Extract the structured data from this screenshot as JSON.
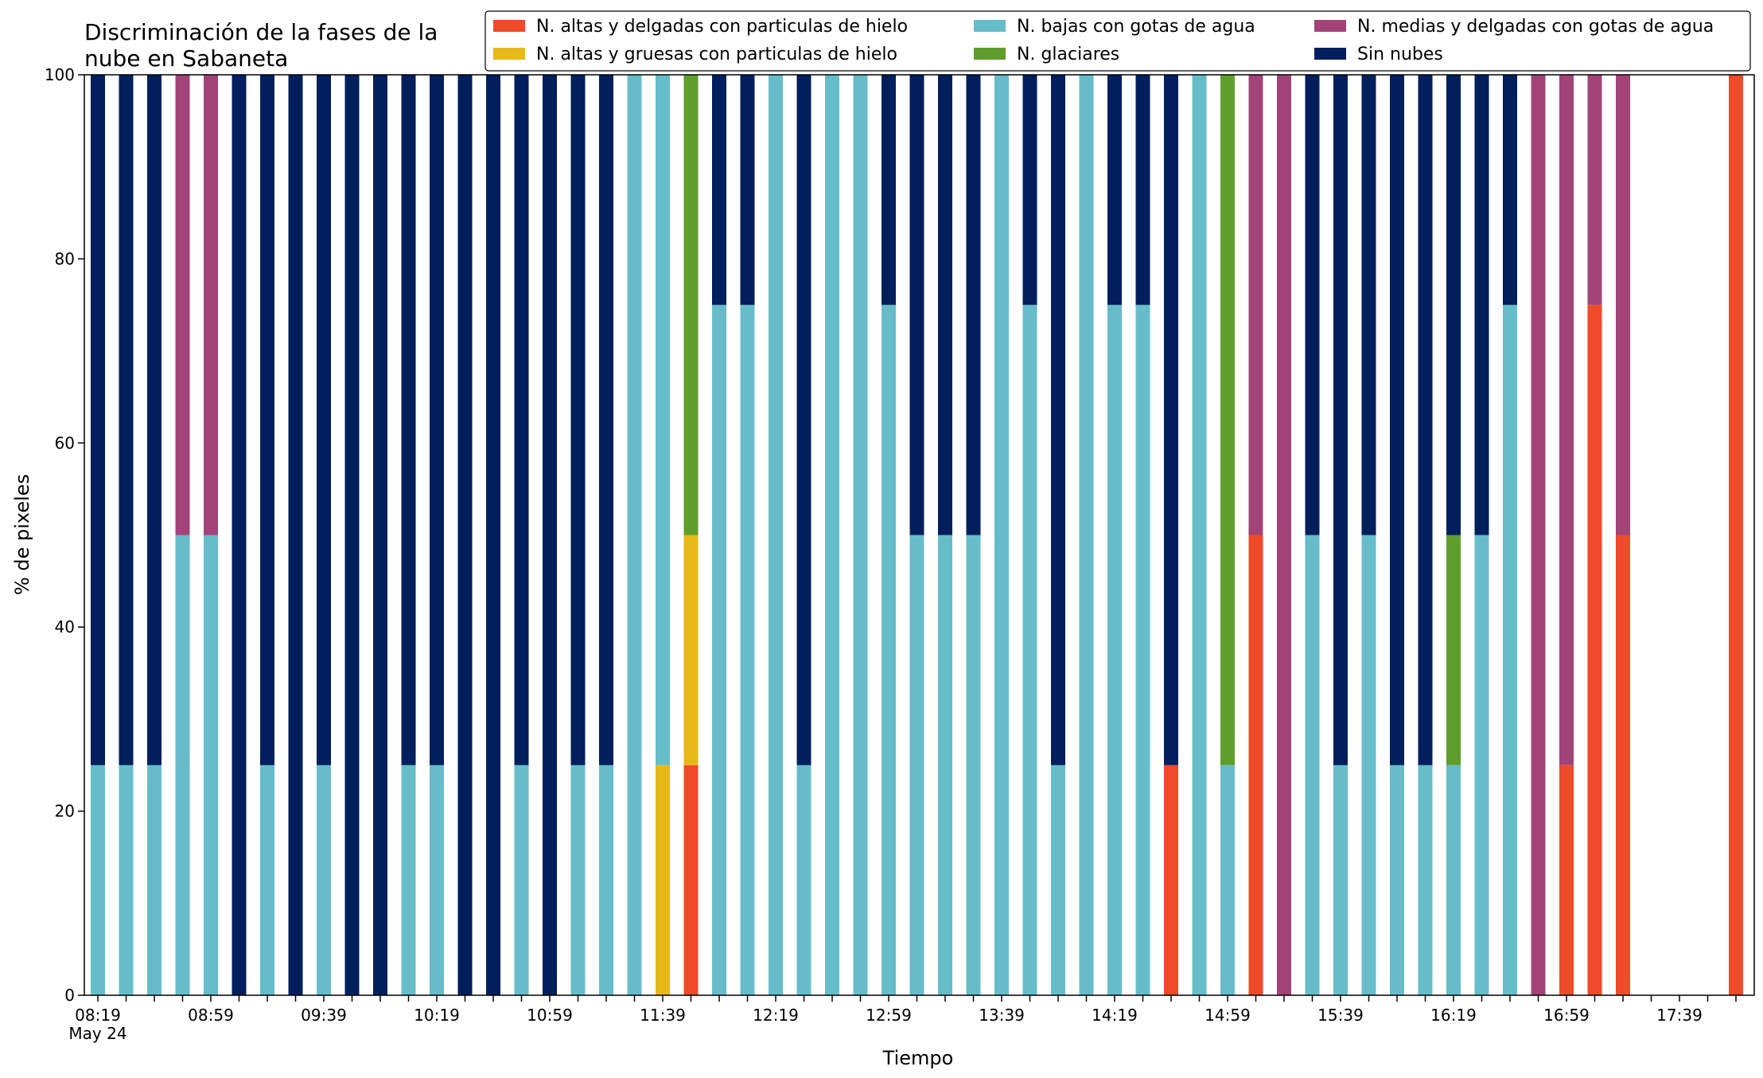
{
  "chart_data": {
    "type": "bar",
    "stacked": true,
    "title_line1": "Discriminación de la fases de la",
    "title_line2": "nube en Sabaneta",
    "xlabel": "Tiempo",
    "ylabel": "% de pixeles",
    "ylim": [
      0,
      100
    ],
    "yticks": [
      "0",
      "20",
      "40",
      "60",
      "80",
      "100"
    ],
    "x_date_label": "May 24",
    "xtick_labels": [
      "08:19",
      "08:59",
      "09:39",
      "10:19",
      "10:59",
      "11:39",
      "12:19",
      "12:59",
      "13:39",
      "14:19",
      "14:59",
      "15:39",
      "16:19",
      "16:59",
      "17:39"
    ],
    "categories": [
      "08:19",
      "08:29",
      "08:39",
      "08:49",
      "08:59",
      "09:09",
      "09:19",
      "09:29",
      "09:39",
      "09:49",
      "09:59",
      "10:09",
      "10:19",
      "10:29",
      "10:39",
      "10:49",
      "10:59",
      "11:09",
      "11:19",
      "11:29",
      "11:39",
      "11:49",
      "11:59",
      "12:09",
      "12:19",
      "12:29",
      "12:39",
      "12:49",
      "12:59",
      "13:09",
      "13:19",
      "13:29",
      "13:39",
      "13:49",
      "13:59",
      "14:09",
      "14:19",
      "14:29",
      "14:39",
      "14:49",
      "14:59",
      "15:09",
      "15:19",
      "15:29",
      "15:39",
      "15:49",
      "15:59",
      "16:09",
      "16:19",
      "16:29",
      "16:39",
      "16:49",
      "16:59",
      "17:09",
      "17:19",
      "17:29",
      "17:39",
      "17:49",
      "17:59"
    ],
    "legend_location": "top-right",
    "grid": false,
    "series": [
      {
        "name": "N. altas y delgadas con particulas de hielo",
        "color": "#ef4a2a",
        "values": [
          0,
          0,
          0,
          0,
          0,
          0,
          0,
          0,
          0,
          0,
          0,
          0,
          0,
          0,
          0,
          0,
          0,
          0,
          0,
          0,
          0,
          25,
          0,
          0,
          0,
          0,
          0,
          0,
          0,
          0,
          0,
          0,
          0,
          0,
          0,
          0,
          0,
          0,
          25,
          0,
          0,
          50,
          0,
          0,
          0,
          0,
          0,
          0,
          0,
          0,
          0,
          0,
          25,
          75,
          50,
          0,
          0,
          0,
          100
        ]
      },
      {
        "name": "N. altas y gruesas con particulas de hielo",
        "color": "#e6b81a",
        "values": [
          0,
          0,
          0,
          0,
          0,
          0,
          0,
          0,
          0,
          0,
          0,
          0,
          0,
          0,
          0,
          0,
          0,
          0,
          0,
          0,
          25,
          25,
          0,
          0,
          0,
          0,
          0,
          0,
          0,
          0,
          0,
          0,
          0,
          0,
          0,
          0,
          0,
          0,
          0,
          0,
          0,
          0,
          0,
          0,
          0,
          0,
          0,
          0,
          0,
          0,
          0,
          0,
          0,
          0,
          0,
          0,
          0,
          0,
          0
        ]
      },
      {
        "name": "N. bajas con gotas de agua",
        "color": "#66bdc9",
        "values": [
          25,
          25,
          25,
          50,
          50,
          0,
          25,
          0,
          25,
          0,
          0,
          25,
          25,
          0,
          0,
          25,
          0,
          25,
          25,
          100,
          75,
          0,
          75,
          75,
          100,
          25,
          100,
          100,
          75,
          50,
          50,
          50,
          100,
          75,
          25,
          100,
          75,
          75,
          0,
          100,
          25,
          0,
          0,
          50,
          25,
          50,
          25,
          25,
          25,
          50,
          75,
          0,
          0,
          0,
          0,
          0,
          0,
          0,
          0
        ]
      },
      {
        "name": "N. glaciares",
        "color": "#5f9e2c",
        "values": [
          0,
          0,
          0,
          0,
          0,
          0,
          0,
          0,
          0,
          0,
          0,
          0,
          0,
          0,
          0,
          0,
          0,
          0,
          0,
          0,
          0,
          50,
          0,
          0,
          0,
          0,
          0,
          0,
          0,
          0,
          0,
          0,
          0,
          0,
          0,
          0,
          0,
          0,
          0,
          0,
          75,
          0,
          0,
          0,
          0,
          0,
          0,
          0,
          25,
          0,
          0,
          0,
          0,
          0,
          0,
          0,
          0,
          0,
          0
        ]
      },
      {
        "name": "N. medias y delgadas con gotas de agua",
        "color": "#a24478",
        "values": [
          0,
          0,
          0,
          50,
          50,
          0,
          0,
          0,
          0,
          0,
          0,
          0,
          0,
          0,
          0,
          0,
          0,
          0,
          0,
          0,
          0,
          0,
          0,
          0,
          0,
          0,
          0,
          0,
          0,
          0,
          0,
          0,
          0,
          0,
          0,
          0,
          0,
          0,
          0,
          0,
          0,
          50,
          100,
          0,
          0,
          0,
          0,
          0,
          0,
          0,
          0,
          100,
          75,
          25,
          50,
          0,
          0,
          0,
          0
        ]
      },
      {
        "name": "Sin nubes",
        "color": "#001f5c",
        "values": [
          75,
          75,
          75,
          0,
          0,
          100,
          75,
          100,
          75,
          100,
          100,
          75,
          75,
          100,
          100,
          75,
          100,
          75,
          75,
          0,
          0,
          0,
          25,
          25,
          0,
          75,
          0,
          0,
          25,
          50,
          50,
          50,
          0,
          25,
          75,
          0,
          25,
          25,
          75,
          0,
          0,
          0,
          0,
          50,
          75,
          50,
          75,
          75,
          50,
          50,
          25,
          0,
          0,
          0,
          0,
          0,
          0,
          0,
          0
        ]
      }
    ]
  }
}
